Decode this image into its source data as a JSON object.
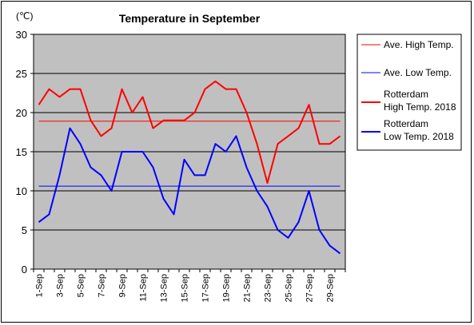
{
  "chart_data": {
    "type": "line",
    "title": "Temperature in September",
    "yunit": "(℃)",
    "ylim": [
      0,
      30
    ],
    "yticks": [
      0,
      5,
      10,
      15,
      20,
      25,
      30
    ],
    "grid": true,
    "legend_position": "right",
    "categories": [
      "1-Sep",
      "2-Sep",
      "3-Sep",
      "4-Sep",
      "5-Sep",
      "6-Sep",
      "7-Sep",
      "8-Sep",
      "9-Sep",
      "10-Sep",
      "11-Sep",
      "12-Sep",
      "13-Sep",
      "14-Sep",
      "15-Sep",
      "16-Sep",
      "17-Sep",
      "18-Sep",
      "19-Sep",
      "20-Sep",
      "21-Sep",
      "22-Sep",
      "23-Sep",
      "24-Sep",
      "25-Sep",
      "26-Sep",
      "27-Sep",
      "28-Sep",
      "29-Sep",
      "30-Sep"
    ],
    "xtick_labels": [
      "1-Sep",
      "",
      "3-Sep",
      "",
      "5-Sep",
      "",
      "7-Sep",
      "",
      "9-Sep",
      "",
      "11-Sep",
      "",
      "13-Sep",
      "",
      "15-Sep",
      "",
      "17-Sep",
      "",
      "19-Sep",
      "",
      "21-Sep",
      "",
      "23-Sep",
      "",
      "25-Sep",
      "",
      "27-Sep",
      "",
      "29-Sep",
      ""
    ],
    "series": [
      {
        "name": "Ave. High Temp.",
        "color": "#ff0000",
        "width": 1,
        "values": [
          18.9,
          18.9,
          18.9,
          18.9,
          18.9,
          18.9,
          18.9,
          18.9,
          18.9,
          18.9,
          18.9,
          18.9,
          18.9,
          18.9,
          18.9,
          18.9,
          18.9,
          18.9,
          18.9,
          18.9,
          18.9,
          18.9,
          18.9,
          18.9,
          18.9,
          18.9,
          18.9,
          18.9,
          18.9,
          18.9
        ]
      },
      {
        "name": "Ave. Low Temp.",
        "color": "#0000ff",
        "width": 1,
        "values": [
          10.6,
          10.6,
          10.6,
          10.6,
          10.6,
          10.6,
          10.6,
          10.6,
          10.6,
          10.6,
          10.6,
          10.6,
          10.6,
          10.6,
          10.6,
          10.6,
          10.6,
          10.6,
          10.6,
          10.6,
          10.6,
          10.6,
          10.6,
          10.6,
          10.6,
          10.6,
          10.6,
          10.6,
          10.6,
          10.6
        ]
      },
      {
        "name": "Rotterdam\nHigh Temp. 2018",
        "color": "#ff0000",
        "width": 2,
        "values": [
          21,
          23,
          22,
          23,
          23,
          19,
          17,
          18,
          23,
          20,
          22,
          18,
          19,
          19,
          19,
          20,
          23,
          24,
          23,
          23,
          20,
          16,
          11,
          16,
          17,
          18,
          21,
          16,
          16,
          17
        ]
      },
      {
        "name": "Rotterdam\nLow Temp. 2018",
        "color": "#0000ff",
        "width": 2,
        "values": [
          6,
          7,
          12,
          18,
          16,
          13,
          12,
          10,
          15,
          15,
          15,
          13,
          9,
          7,
          14,
          12,
          12,
          16,
          15,
          17,
          13,
          10,
          8,
          5,
          4,
          6,
          10,
          5,
          3,
          2
        ]
      }
    ]
  }
}
